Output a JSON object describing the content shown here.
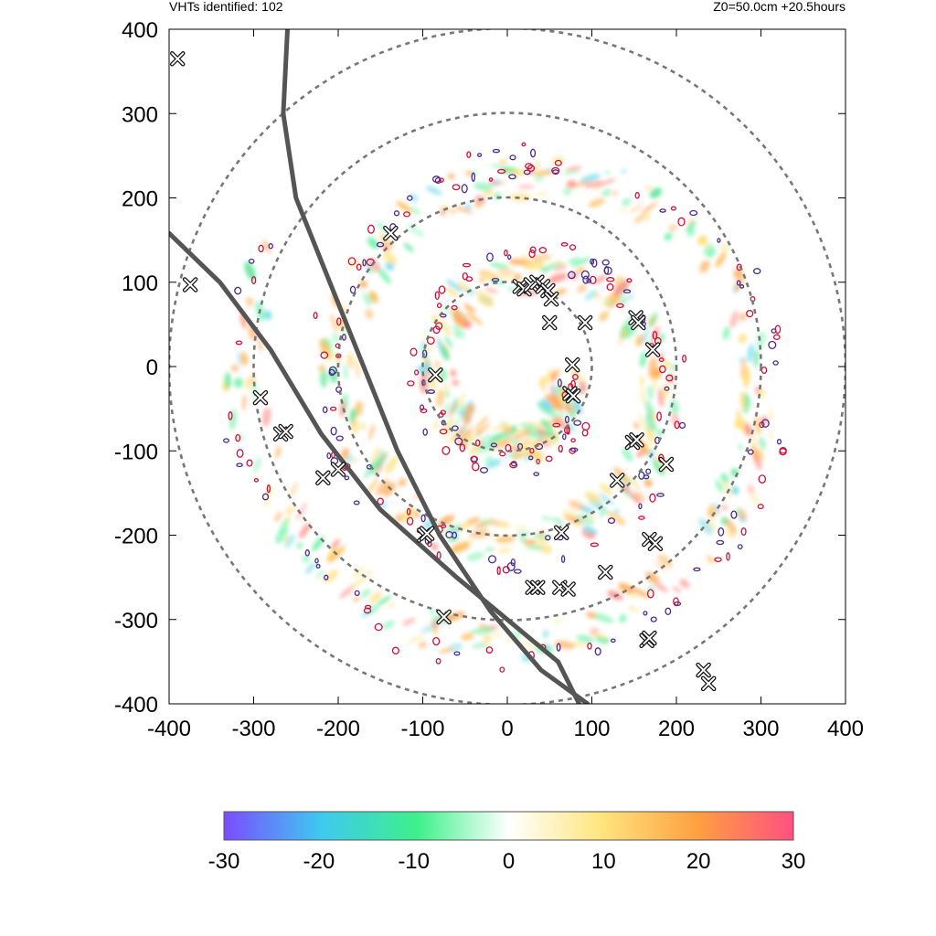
{
  "header": {
    "left_text": "VHTs identified: 102",
    "right_text": "Z0=50.0cm  +20.5hours"
  },
  "chart_data": {
    "type": "heatmap",
    "title": "",
    "xlabel": "",
    "ylabel": "",
    "xlim": [
      -400,
      400
    ],
    "ylim": [
      -400,
      400
    ],
    "x_ticks": [
      -400,
      -300,
      -200,
      -100,
      0,
      100,
      200,
      300,
      400
    ],
    "y_ticks": [
      400,
      300,
      200,
      100,
      0,
      -100,
      -200,
      -300,
      -400
    ],
    "grid": false,
    "range_rings": [
      100,
      200,
      300,
      400
    ],
    "colorbar": {
      "ticks": [
        -30,
        -20,
        -10,
        0,
        10,
        20,
        30
      ],
      "range": [
        -30,
        30
      ],
      "colors": [
        "#7a4cff",
        "#3ec9f0",
        "#3ef08a",
        "#ffffff",
        "#ffe680",
        "#ffa040",
        "#ff5080"
      ]
    },
    "tracks": [
      [
        [
          -260,
          400
        ],
        [
          -265,
          300
        ],
        [
          -250,
          200
        ],
        [
          -210,
          100
        ],
        [
          -170,
          0
        ],
        [
          -130,
          -100
        ],
        [
          -80,
          -200
        ],
        [
          -20,
          -290
        ],
        [
          40,
          -360
        ],
        [
          95,
          -400
        ]
      ],
      [
        [
          -400,
          158
        ],
        [
          -340,
          100
        ],
        [
          -280,
          20
        ],
        [
          -220,
          -80
        ],
        [
          -150,
          -170
        ],
        [
          -60,
          -250
        ],
        [
          0,
          -300
        ],
        [
          60,
          -350
        ],
        [
          85,
          -400
        ]
      ]
    ],
    "vht_markers": [
      [
        -390,
        365
      ],
      [
        -375,
        97
      ],
      [
        -292,
        -37
      ],
      [
        -268,
        -80
      ],
      [
        -262,
        -77
      ],
      [
        -218,
        -132
      ],
      [
        -200,
        -122
      ],
      [
        -138,
        158
      ],
      [
        -98,
        -200
      ],
      [
        -95,
        -198
      ],
      [
        -85,
        -10
      ],
      [
        -75,
        -297
      ],
      [
        15,
        95
      ],
      [
        20,
        92
      ],
      [
        28,
        97
      ],
      [
        35,
        100
      ],
      [
        42,
        95
      ],
      [
        48,
        90
      ],
      [
        52,
        80
      ],
      [
        30,
        -262
      ],
      [
        36,
        -262
      ],
      [
        50,
        52
      ],
      [
        62,
        -262
      ],
      [
        64,
        -197
      ],
      [
        72,
        -264
      ],
      [
        77,
        2
      ],
      [
        74,
        -32
      ],
      [
        78,
        -35
      ],
      [
        92,
        52
      ],
      [
        116,
        -244
      ],
      [
        130,
        -135
      ],
      [
        148,
        -90
      ],
      [
        153,
        -87
      ],
      [
        152,
        58
      ],
      [
        155,
        52
      ],
      [
        168,
        -205
      ],
      [
        175,
        -210
      ],
      [
        172,
        20
      ],
      [
        165,
        -325
      ],
      [
        168,
        -322
      ],
      [
        188,
        -116
      ],
      [
        232,
        -360
      ],
      [
        238,
        -376
      ]
    ]
  },
  "colorbar": {
    "tick_labels": [
      "-30",
      "-20",
      "-10",
      "0",
      "10",
      "20",
      "30"
    ]
  }
}
